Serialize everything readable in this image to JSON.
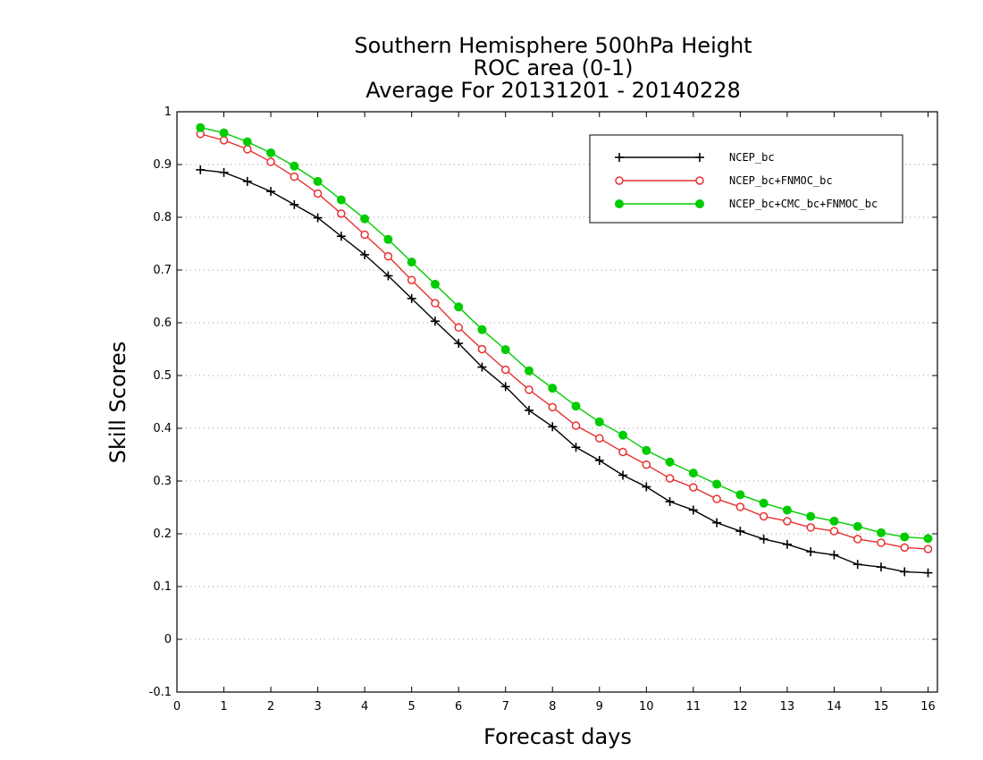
{
  "chart_data": {
    "type": "line",
    "title": [
      "Southern Hemisphere 500hPa Height",
      "ROC area (0-1)",
      "Average For 20131201 - 20140228"
    ],
    "xlabel": "Forecast days",
    "ylabel": "Skill Scores",
    "xlim": [
      0,
      16.2
    ],
    "ylim": [
      -0.1,
      1
    ],
    "xticks": [
      "0",
      "1",
      "2",
      "3",
      "4",
      "5",
      "6",
      "7",
      "8",
      "9",
      "10",
      "11",
      "12",
      "13",
      "14",
      "15",
      "16"
    ],
    "yticks": [
      "-0.1",
      "0",
      "0.1",
      "0.2",
      "0.3",
      "0.4",
      "0.5",
      "0.6",
      "0.7",
      "0.8",
      "0.9",
      "1"
    ],
    "grid": "horizontal-dotted",
    "legend_position": "top-right",
    "x": [
      0.5,
      1,
      1.5,
      2,
      2.5,
      3,
      3.5,
      4,
      4.5,
      5,
      5.5,
      6,
      6.5,
      7,
      7.5,
      8,
      8.5,
      9,
      9.5,
      10,
      10.5,
      11,
      11.5,
      12,
      12.5,
      13,
      13.5,
      14,
      14.5,
      15,
      15.5,
      16
    ],
    "series": [
      {
        "name": "NCEP_bc",
        "color": "#000000",
        "marker": "plus",
        "values": [
          0.89,
          0.885,
          0.868,
          0.849,
          0.824,
          0.799,
          0.764,
          0.729,
          0.689,
          0.646,
          0.603,
          0.561,
          0.516,
          0.479,
          0.434,
          0.403,
          0.364,
          0.339,
          0.311,
          0.289,
          0.261,
          0.245,
          0.221,
          0.205,
          0.19,
          0.18,
          0.166,
          0.16,
          0.142,
          0.137,
          0.128,
          0.126
        ]
      },
      {
        "name": "NCEP_bc+FNMOC_bc",
        "color": "#e83030",
        "marker": "open-circle",
        "values": [
          0.958,
          0.946,
          0.929,
          0.905,
          0.877,
          0.845,
          0.807,
          0.767,
          0.726,
          0.681,
          0.637,
          0.591,
          0.55,
          0.511,
          0.473,
          0.44,
          0.405,
          0.381,
          0.355,
          0.331,
          0.305,
          0.288,
          0.266,
          0.251,
          0.233,
          0.224,
          0.212,
          0.205,
          0.19,
          0.183,
          0.174,
          0.171
        ]
      },
      {
        "name": "NCEP_bc+CMC_bc+FNMOC_bc",
        "color": "#00cc00",
        "marker": "filled-circle",
        "values": [
          0.97,
          0.96,
          0.943,
          0.922,
          0.897,
          0.868,
          0.833,
          0.797,
          0.758,
          0.715,
          0.673,
          0.63,
          0.587,
          0.549,
          0.509,
          0.476,
          0.442,
          0.412,
          0.387,
          0.358,
          0.336,
          0.315,
          0.294,
          0.274,
          0.258,
          0.245,
          0.233,
          0.224,
          0.214,
          0.202,
          0.194,
          0.191
        ]
      }
    ]
  }
}
